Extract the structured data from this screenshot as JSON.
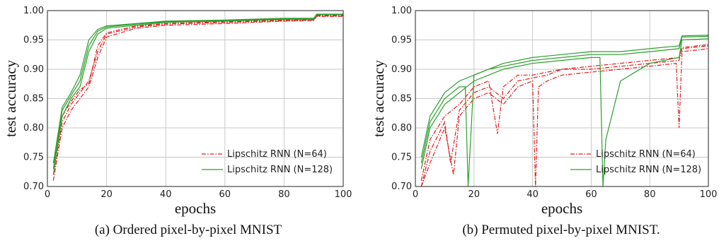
{
  "chart_data": [
    {
      "type": "line",
      "caption": "(a) Ordered pixel-by-pixel MNIST",
      "xlabel": "epochs",
      "ylabel": "test accuracy",
      "xlim": [
        0,
        100
      ],
      "ylim": [
        0.7,
        1.0
      ],
      "xticks": [
        0,
        20,
        40,
        60,
        80,
        100
      ],
      "yticks": [
        0.7,
        0.75,
        0.8,
        0.85,
        0.9,
        0.95,
        1.0
      ],
      "ytick_labels": [
        "0.70",
        "0.75",
        "0.80",
        "0.85",
        "0.90",
        "0.95",
        "1.00"
      ],
      "grid": true,
      "legend_position": "lower-right",
      "series": [
        {
          "name": "Lipschitz RNN (N=64)",
          "color": "#e41a1c",
          "style": "dashdot",
          "x": [
            2,
            5,
            8,
            11,
            14,
            17,
            20,
            30,
            40,
            60,
            80,
            90,
            91,
            100
          ],
          "y": [
            0.71,
            0.8,
            0.83,
            0.85,
            0.87,
            0.92,
            0.955,
            0.97,
            0.975,
            0.978,
            0.982,
            0.983,
            0.99,
            0.99
          ]
        },
        {
          "name": "Lipschitz RNN (N=64)",
          "color": "#e41a1c",
          "style": "dashdot",
          "x": [
            2,
            5,
            8,
            11,
            14,
            17,
            20,
            30,
            40,
            60,
            80,
            90,
            91,
            100
          ],
          "y": [
            0.72,
            0.81,
            0.84,
            0.86,
            0.88,
            0.93,
            0.96,
            0.972,
            0.977,
            0.98,
            0.983,
            0.984,
            0.991,
            0.991
          ]
        },
        {
          "name": "Lipschitz RNN (N=64)",
          "color": "#e41a1c",
          "style": "dashdot",
          "x": [
            2,
            5,
            8,
            11,
            14,
            17,
            20,
            30,
            40,
            60,
            80,
            90,
            91,
            100
          ],
          "y": [
            0.74,
            0.82,
            0.845,
            0.865,
            0.875,
            0.94,
            0.962,
            0.974,
            0.978,
            0.981,
            0.984,
            0.985,
            0.992,
            0.992
          ]
        },
        {
          "name": "Lipschitz RNN (N=128)",
          "color": "#2ca02c",
          "style": "solid",
          "x": [
            2,
            5,
            8,
            11,
            14,
            17,
            20,
            30,
            40,
            60,
            80,
            90,
            91,
            100
          ],
          "y": [
            0.72,
            0.82,
            0.85,
            0.87,
            0.93,
            0.96,
            0.97,
            0.975,
            0.98,
            0.982,
            0.985,
            0.985,
            0.993,
            0.993
          ]
        },
        {
          "name": "Lipschitz RNN (N=128)",
          "color": "#2ca02c",
          "style": "solid",
          "x": [
            2,
            5,
            8,
            11,
            14,
            17,
            20,
            30,
            40,
            60,
            80,
            90,
            91,
            100
          ],
          "y": [
            0.73,
            0.83,
            0.855,
            0.88,
            0.94,
            0.965,
            0.972,
            0.977,
            0.981,
            0.983,
            0.986,
            0.986,
            0.994,
            0.994
          ]
        },
        {
          "name": "Lipschitz RNN (N=128)",
          "color": "#2ca02c",
          "style": "solid",
          "x": [
            2,
            5,
            8,
            11,
            14,
            17,
            20,
            30,
            40,
            60,
            80,
            90,
            91,
            100
          ],
          "y": [
            0.74,
            0.835,
            0.86,
            0.89,
            0.95,
            0.968,
            0.974,
            0.978,
            0.982,
            0.984,
            0.987,
            0.987,
            0.993,
            0.993
          ]
        }
      ],
      "legend": [
        {
          "label": "Lipschitz RNN (N=64)",
          "color": "#e41a1c",
          "style": "dashdot"
        },
        {
          "label": "Lipschitz RNN (N=128)",
          "color": "#2ca02c",
          "style": "solid"
        }
      ]
    },
    {
      "type": "line",
      "caption": "(b) Permuted pixel-by-pixel MNIST.",
      "xlabel": "epochs",
      "ylabel": "test accuracy",
      "xlim": [
        0,
        100
      ],
      "ylim": [
        0.7,
        1.0
      ],
      "xticks": [
        0,
        20,
        40,
        60,
        80,
        100
      ],
      "yticks": [
        0.7,
        0.75,
        0.8,
        0.85,
        0.9,
        0.95,
        1.0
      ],
      "ytick_labels": [
        "0.70",
        "0.75",
        "0.80",
        "0.85",
        "0.90",
        "0.95",
        "1.00"
      ],
      "grid": true,
      "legend_position": "lower-right",
      "series": [
        {
          "name": "Lipschitz RNN (N=64)",
          "color": "#e41a1c",
          "style": "dashdot",
          "x": [
            2,
            5,
            10,
            13,
            15,
            20,
            25,
            30,
            35,
            40,
            41,
            42,
            45,
            50,
            60,
            70,
            80,
            89,
            90,
            91,
            100
          ],
          "y": [
            0.7,
            0.74,
            0.8,
            0.72,
            0.82,
            0.85,
            0.86,
            0.84,
            0.87,
            0.88,
            0.7,
            0.87,
            0.88,
            0.89,
            0.895,
            0.9,
            0.905,
            0.91,
            0.8,
            0.93,
            0.935
          ]
        },
        {
          "name": "Lipschitz RNN (N=64)",
          "color": "#e41a1c",
          "style": "dashdot",
          "x": [
            2,
            5,
            10,
            12,
            15,
            20,
            25,
            30,
            35,
            40,
            45,
            50,
            60,
            70,
            80,
            90,
            91,
            100
          ],
          "y": [
            0.7,
            0.76,
            0.81,
            0.74,
            0.83,
            0.86,
            0.87,
            0.85,
            0.88,
            0.885,
            0.89,
            0.9,
            0.9,
            0.905,
            0.91,
            0.915,
            0.935,
            0.94
          ]
        },
        {
          "name": "Lipschitz RNN (N=64)",
          "color": "#e41a1c",
          "style": "dashdot",
          "x": [
            2,
            5,
            10,
            15,
            20,
            25,
            28,
            30,
            35,
            40,
            45,
            50,
            60,
            70,
            80,
            90,
            91,
            100
          ],
          "y": [
            0.71,
            0.78,
            0.82,
            0.84,
            0.87,
            0.88,
            0.79,
            0.87,
            0.89,
            0.89,
            0.895,
            0.9,
            0.905,
            0.91,
            0.915,
            0.92,
            0.937,
            0.942
          ]
        },
        {
          "name": "Lipschitz RNN (N=128)",
          "color": "#2ca02c",
          "style": "solid",
          "x": [
            2,
            5,
            10,
            15,
            20,
            25,
            30,
            40,
            50,
            60,
            63,
            64,
            65,
            70,
            80,
            90,
            91,
            100
          ],
          "y": [
            0.73,
            0.8,
            0.84,
            0.86,
            0.88,
            0.89,
            0.9,
            0.91,
            0.915,
            0.92,
            0.92,
            0.7,
            0.78,
            0.88,
            0.91,
            0.92,
            0.95,
            0.952
          ]
        },
        {
          "name": "Lipschitz RNN (N=128)",
          "color": "#2ca02c",
          "style": "solid",
          "x": [
            2,
            5,
            10,
            15,
            17,
            18,
            20,
            25,
            30,
            40,
            50,
            60,
            70,
            80,
            90,
            91,
            100
          ],
          "y": [
            0.74,
            0.81,
            0.85,
            0.87,
            0.87,
            0.7,
            0.89,
            0.9,
            0.905,
            0.915,
            0.92,
            0.925,
            0.925,
            0.93,
            0.935,
            0.955,
            0.956
          ]
        },
        {
          "name": "Lipschitz RNN (N=128)",
          "color": "#2ca02c",
          "style": "solid",
          "x": [
            2,
            5,
            10,
            15,
            20,
            25,
            30,
            40,
            50,
            60,
            70,
            80,
            90,
            91,
            100
          ],
          "y": [
            0.75,
            0.82,
            0.86,
            0.88,
            0.89,
            0.9,
            0.91,
            0.92,
            0.925,
            0.93,
            0.93,
            0.935,
            0.94,
            0.957,
            0.958
          ]
        }
      ],
      "legend": [
        {
          "label": "Lipschitz RNN (N=64)",
          "color": "#e41a1c",
          "style": "dashdot"
        },
        {
          "label": "Lipschitz RNN (N=128)",
          "color": "#2ca02c",
          "style": "solid"
        }
      ]
    }
  ]
}
